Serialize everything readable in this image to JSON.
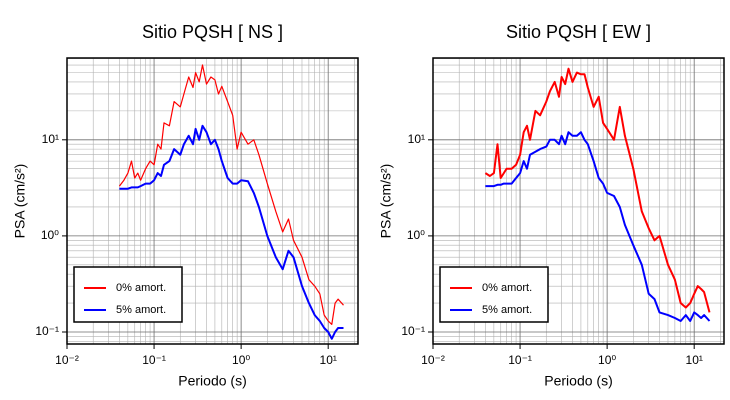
{
  "chart_data": [
    {
      "type": "line",
      "title": "Sitio PQSH [ NS ]",
      "x_label": "Periodo (s)",
      "y_label": "PSA (cm/s²)",
      "log_x": true,
      "log_y": true,
      "grid": true,
      "legend": "lower left",
      "xlim": [
        0.01,
        22
      ],
      "ylim": [
        0.075,
        71
      ],
      "xticks": [
        {
          "value": 0.01,
          "label": "10⁻²"
        },
        {
          "value": 0.1,
          "label": "10⁻¹"
        },
        {
          "value": 1,
          "label": "10⁰"
        },
        {
          "value": 10,
          "label": "10¹"
        }
      ],
      "yticks": [
        {
          "value": 0.1,
          "label": "10⁻¹"
        },
        {
          "value": 1,
          "label": "10⁰"
        },
        {
          "value": 10,
          "label": "10¹"
        }
      ],
      "xticks_minor": [
        0.02,
        0.03,
        0.04,
        0.05,
        0.06,
        0.07,
        0.08,
        0.09,
        0.2,
        0.3,
        0.4,
        0.5,
        0.6,
        0.7,
        0.8,
        0.9,
        2,
        3,
        4,
        5,
        6,
        7,
        8,
        9,
        20
      ],
      "yticks_minor": [
        0.08,
        0.09,
        0.2,
        0.3,
        0.4,
        0.5,
        0.6,
        0.7,
        0.8,
        0.9,
        2,
        3,
        4,
        5,
        6,
        7,
        8,
        9,
        20,
        30,
        40,
        50,
        60,
        70
      ],
      "x": [
        0.04,
        0.045,
        0.05,
        0.055,
        0.06,
        0.065,
        0.07,
        0.08,
        0.09,
        0.1,
        0.11,
        0.12,
        0.13,
        0.15,
        0.17,
        0.2,
        0.22,
        0.25,
        0.28,
        0.3,
        0.33,
        0.36,
        0.4,
        0.45,
        0.5,
        0.55,
        0.6,
        0.7,
        0.8,
        0.9,
        1.0,
        1.2,
        1.4,
        1.6,
        2.0,
        2.5,
        3.0,
        3.5,
        4.0,
        5.0,
        6.0,
        7.0,
        8.0,
        9.0,
        10,
        11,
        12,
        13,
        15
      ],
      "series": [
        {
          "name": "0% amort.",
          "color": "#ff0000",
          "width": 1.2,
          "values": [
            3.3,
            3.8,
            4.5,
            6,
            4,
            4.5,
            3.8,
            5,
            6,
            5.5,
            9,
            8,
            15,
            14,
            25,
            22,
            30,
            45,
            35,
            50,
            40,
            60,
            38,
            45,
            42,
            30,
            36,
            25,
            18,
            8,
            12,
            9,
            10,
            7,
            3.5,
            1.8,
            1.1,
            1.5,
            0.9,
            0.6,
            0.35,
            0.3,
            0.25,
            0.15,
            0.13,
            0.12,
            0.2,
            0.22,
            0.19
          ]
        },
        {
          "name": "5% amort.",
          "color": "#0000ff",
          "width": 2,
          "values": [
            3.1,
            3.1,
            3.1,
            3.2,
            3.2,
            3.2,
            3.3,
            3.5,
            3.5,
            3.8,
            4.5,
            4.2,
            5.5,
            6,
            8,
            7,
            9,
            11,
            9,
            13,
            10,
            14,
            12,
            9,
            10,
            8,
            6,
            4,
            3.5,
            3.5,
            3.8,
            3.7,
            2.8,
            2.0,
            1.0,
            0.6,
            0.45,
            0.7,
            0.6,
            0.3,
            0.2,
            0.15,
            0.13,
            0.11,
            0.1,
            0.085,
            0.1,
            0.11,
            0.11
          ]
        }
      ]
    },
    {
      "type": "line",
      "title": "Sitio PQSH [ EW ]",
      "x_label": "Periodo (s)",
      "y_label": "PSA (cm/s²)",
      "log_x": true,
      "log_y": true,
      "grid": true,
      "legend": "lower left",
      "xlim": [
        0.01,
        22
      ],
      "ylim": [
        0.075,
        71
      ],
      "xticks": [
        {
          "value": 0.01,
          "label": "10⁻²"
        },
        {
          "value": 0.1,
          "label": "10⁻¹"
        },
        {
          "value": 1,
          "label": "10⁰"
        },
        {
          "value": 10,
          "label": "10¹"
        }
      ],
      "yticks": [
        {
          "value": 0.1,
          "label": "10⁻¹"
        },
        {
          "value": 1,
          "label": "10⁰"
        },
        {
          "value": 10,
          "label": "10¹"
        }
      ],
      "xticks_minor": [
        0.02,
        0.03,
        0.04,
        0.05,
        0.06,
        0.07,
        0.08,
        0.09,
        0.2,
        0.3,
        0.4,
        0.5,
        0.6,
        0.7,
        0.8,
        0.9,
        2,
        3,
        4,
        5,
        6,
        7,
        8,
        9,
        20
      ],
      "yticks_minor": [
        0.08,
        0.09,
        0.2,
        0.3,
        0.4,
        0.5,
        0.6,
        0.7,
        0.8,
        0.9,
        2,
        3,
        4,
        5,
        6,
        7,
        8,
        9,
        20,
        30,
        40,
        50,
        60,
        70
      ],
      "x": [
        0.04,
        0.045,
        0.05,
        0.055,
        0.06,
        0.065,
        0.07,
        0.08,
        0.09,
        0.1,
        0.11,
        0.12,
        0.13,
        0.15,
        0.17,
        0.2,
        0.22,
        0.25,
        0.28,
        0.3,
        0.33,
        0.36,
        0.4,
        0.45,
        0.5,
        0.55,
        0.6,
        0.7,
        0.8,
        0.9,
        1.0,
        1.2,
        1.4,
        1.6,
        2.0,
        2.5,
        3.0,
        3.5,
        4.0,
        5.0,
        6.0,
        7.0,
        8.0,
        9.0,
        10,
        11,
        12,
        13,
        15
      ],
      "series": [
        {
          "name": "0% amort.",
          "color": "#ff0000",
          "width": 2,
          "values": [
            4.5,
            4.2,
            4.5,
            9,
            4,
            4.5,
            5,
            5,
            5.5,
            7,
            12,
            14,
            10,
            20,
            18,
            25,
            32,
            40,
            28,
            45,
            38,
            55,
            40,
            50,
            48,
            48,
            35,
            22,
            28,
            15,
            13,
            10,
            22,
            11,
            5,
            1.8,
            1.2,
            0.9,
            1.0,
            0.5,
            0.35,
            0.2,
            0.18,
            0.2,
            0.25,
            0.3,
            0.28,
            0.26,
            0.16
          ]
        },
        {
          "name": "5% amort.",
          "color": "#0000ff",
          "width": 2,
          "values": [
            3.3,
            3.3,
            3.3,
            3.4,
            3.4,
            3.5,
            3.5,
            3.5,
            4,
            4.5,
            6,
            5,
            7,
            7.5,
            8,
            8.5,
            10,
            10,
            9,
            11,
            9,
            12,
            11,
            11,
            12,
            10,
            9,
            6,
            4,
            3.5,
            2.8,
            2.6,
            2.0,
            1.3,
            0.8,
            0.5,
            0.25,
            0.22,
            0.16,
            0.15,
            0.14,
            0.13,
            0.15,
            0.13,
            0.16,
            0.15,
            0.14,
            0.15,
            0.13
          ]
        }
      ]
    }
  ]
}
